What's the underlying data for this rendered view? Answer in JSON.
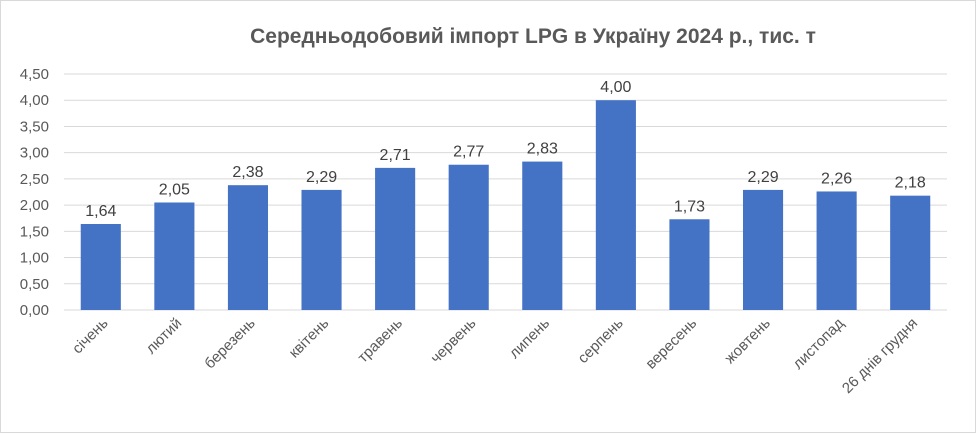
{
  "chart_data": {
    "type": "bar",
    "title": "Середньодобовий імпорт LPG в Україну 2024 р., тис. т",
    "xlabel": "",
    "ylabel": "",
    "categories": [
      "січень",
      "лютий",
      "березень",
      "квітень",
      "травень",
      "червень",
      "липень",
      "серпень",
      "вересень",
      "жовтень",
      "листопад",
      "26 днів грудня"
    ],
    "values": [
      1.64,
      2.05,
      2.38,
      2.29,
      2.71,
      2.77,
      2.83,
      4.0,
      1.73,
      2.29,
      2.26,
      2.18
    ],
    "data_labels": [
      "1,64",
      "2,05",
      "2,38",
      "2,29",
      "2,71",
      "2,77",
      "2,83",
      "4,00",
      "1,73",
      "2,29",
      "2,26",
      "2,18"
    ],
    "ylim": [
      0,
      4.5
    ],
    "yticks": [
      0,
      0.5,
      1.0,
      1.5,
      2.0,
      2.5,
      3.0,
      3.5,
      4.0,
      4.5
    ],
    "ytick_labels": [
      "0,00",
      "0,50",
      "1,00",
      "1,50",
      "2,00",
      "2,50",
      "3,00",
      "3,50",
      "4,00",
      "4,50"
    ],
    "grid": true,
    "legend": "none",
    "bar_color": "#4472c4"
  }
}
